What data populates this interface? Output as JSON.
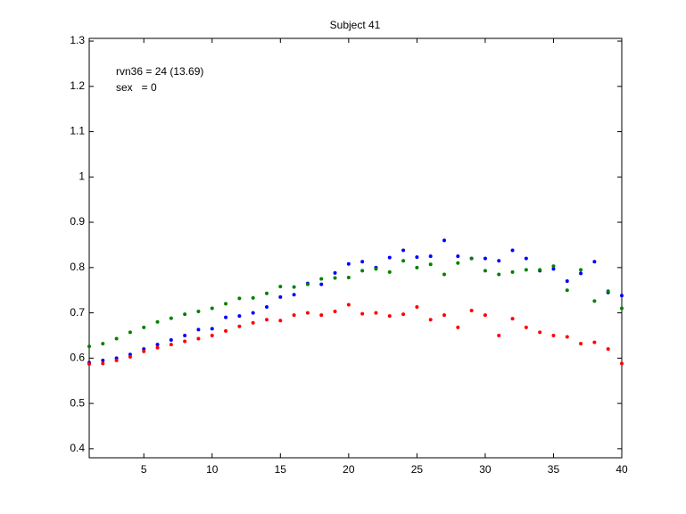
{
  "chart_data": {
    "type": "scatter",
    "title": "Subject 41",
    "annotations": [
      "rvn36 = 24 (13.69)",
      "sex   = 0"
    ],
    "x": [
      1,
      2,
      3,
      4,
      5,
      6,
      7,
      8,
      9,
      10,
      11,
      12,
      13,
      14,
      15,
      16,
      17,
      18,
      19,
      20,
      21,
      22,
      23,
      24,
      25,
      26,
      27,
      28,
      29,
      30,
      31,
      32,
      33,
      34,
      35,
      36,
      37,
      38,
      39,
      40
    ],
    "series": [
      {
        "color": "#0000ff",
        "values": [
          0.59,
          0.595,
          0.6,
          0.608,
          0.62,
          0.63,
          0.64,
          0.65,
          0.663,
          0.665,
          0.69,
          0.693,
          0.7,
          0.713,
          0.735,
          0.74,
          0.765,
          0.763,
          0.788,
          0.808,
          0.813,
          0.8,
          0.822,
          0.838,
          0.823,
          0.825,
          0.86,
          0.825,
          0.82,
          0.82,
          0.815,
          0.838,
          0.82,
          0.793,
          0.797,
          0.77,
          0.787,
          0.813,
          0.745,
          0.738
        ]
      },
      {
        "color": "#008000",
        "values": [
          0.626,
          0.632,
          0.643,
          0.657,
          0.668,
          0.68,
          0.688,
          0.697,
          0.703,
          0.71,
          0.72,
          0.732,
          0.733,
          0.743,
          0.758,
          0.757,
          0.763,
          0.775,
          0.777,
          0.778,
          0.793,
          0.797,
          0.79,
          0.815,
          0.8,
          0.807,
          0.785,
          0.81,
          0.82,
          0.793,
          0.785,
          0.79,
          0.795,
          0.795,
          0.803,
          0.75,
          0.795,
          0.726,
          0.748,
          0.71
        ]
      },
      {
        "color": "#ff0000",
        "values": [
          0.587,
          0.588,
          0.595,
          0.603,
          0.615,
          0.623,
          0.63,
          0.637,
          0.643,
          0.65,
          0.66,
          0.67,
          0.678,
          0.685,
          0.683,
          0.695,
          0.7,
          0.695,
          0.703,
          0.718,
          0.698,
          0.7,
          0.693,
          0.697,
          0.713,
          0.685,
          0.695,
          0.668,
          0.705,
          0.695,
          0.65,
          0.687,
          0.668,
          0.657,
          0.65,
          0.647,
          0.632,
          0.635,
          0.62,
          0.588
        ]
      }
    ],
    "xlim": [
      1,
      40
    ],
    "xticks": [
      5,
      10,
      15,
      20,
      25,
      30,
      35,
      40
    ],
    "ylim": [
      0.38,
      1.306
    ],
    "yticks": [
      0.4,
      0.5,
      0.6,
      0.7,
      0.8,
      0.9,
      1,
      1.1,
      1.2,
      1.3
    ],
    "grid": false
  }
}
